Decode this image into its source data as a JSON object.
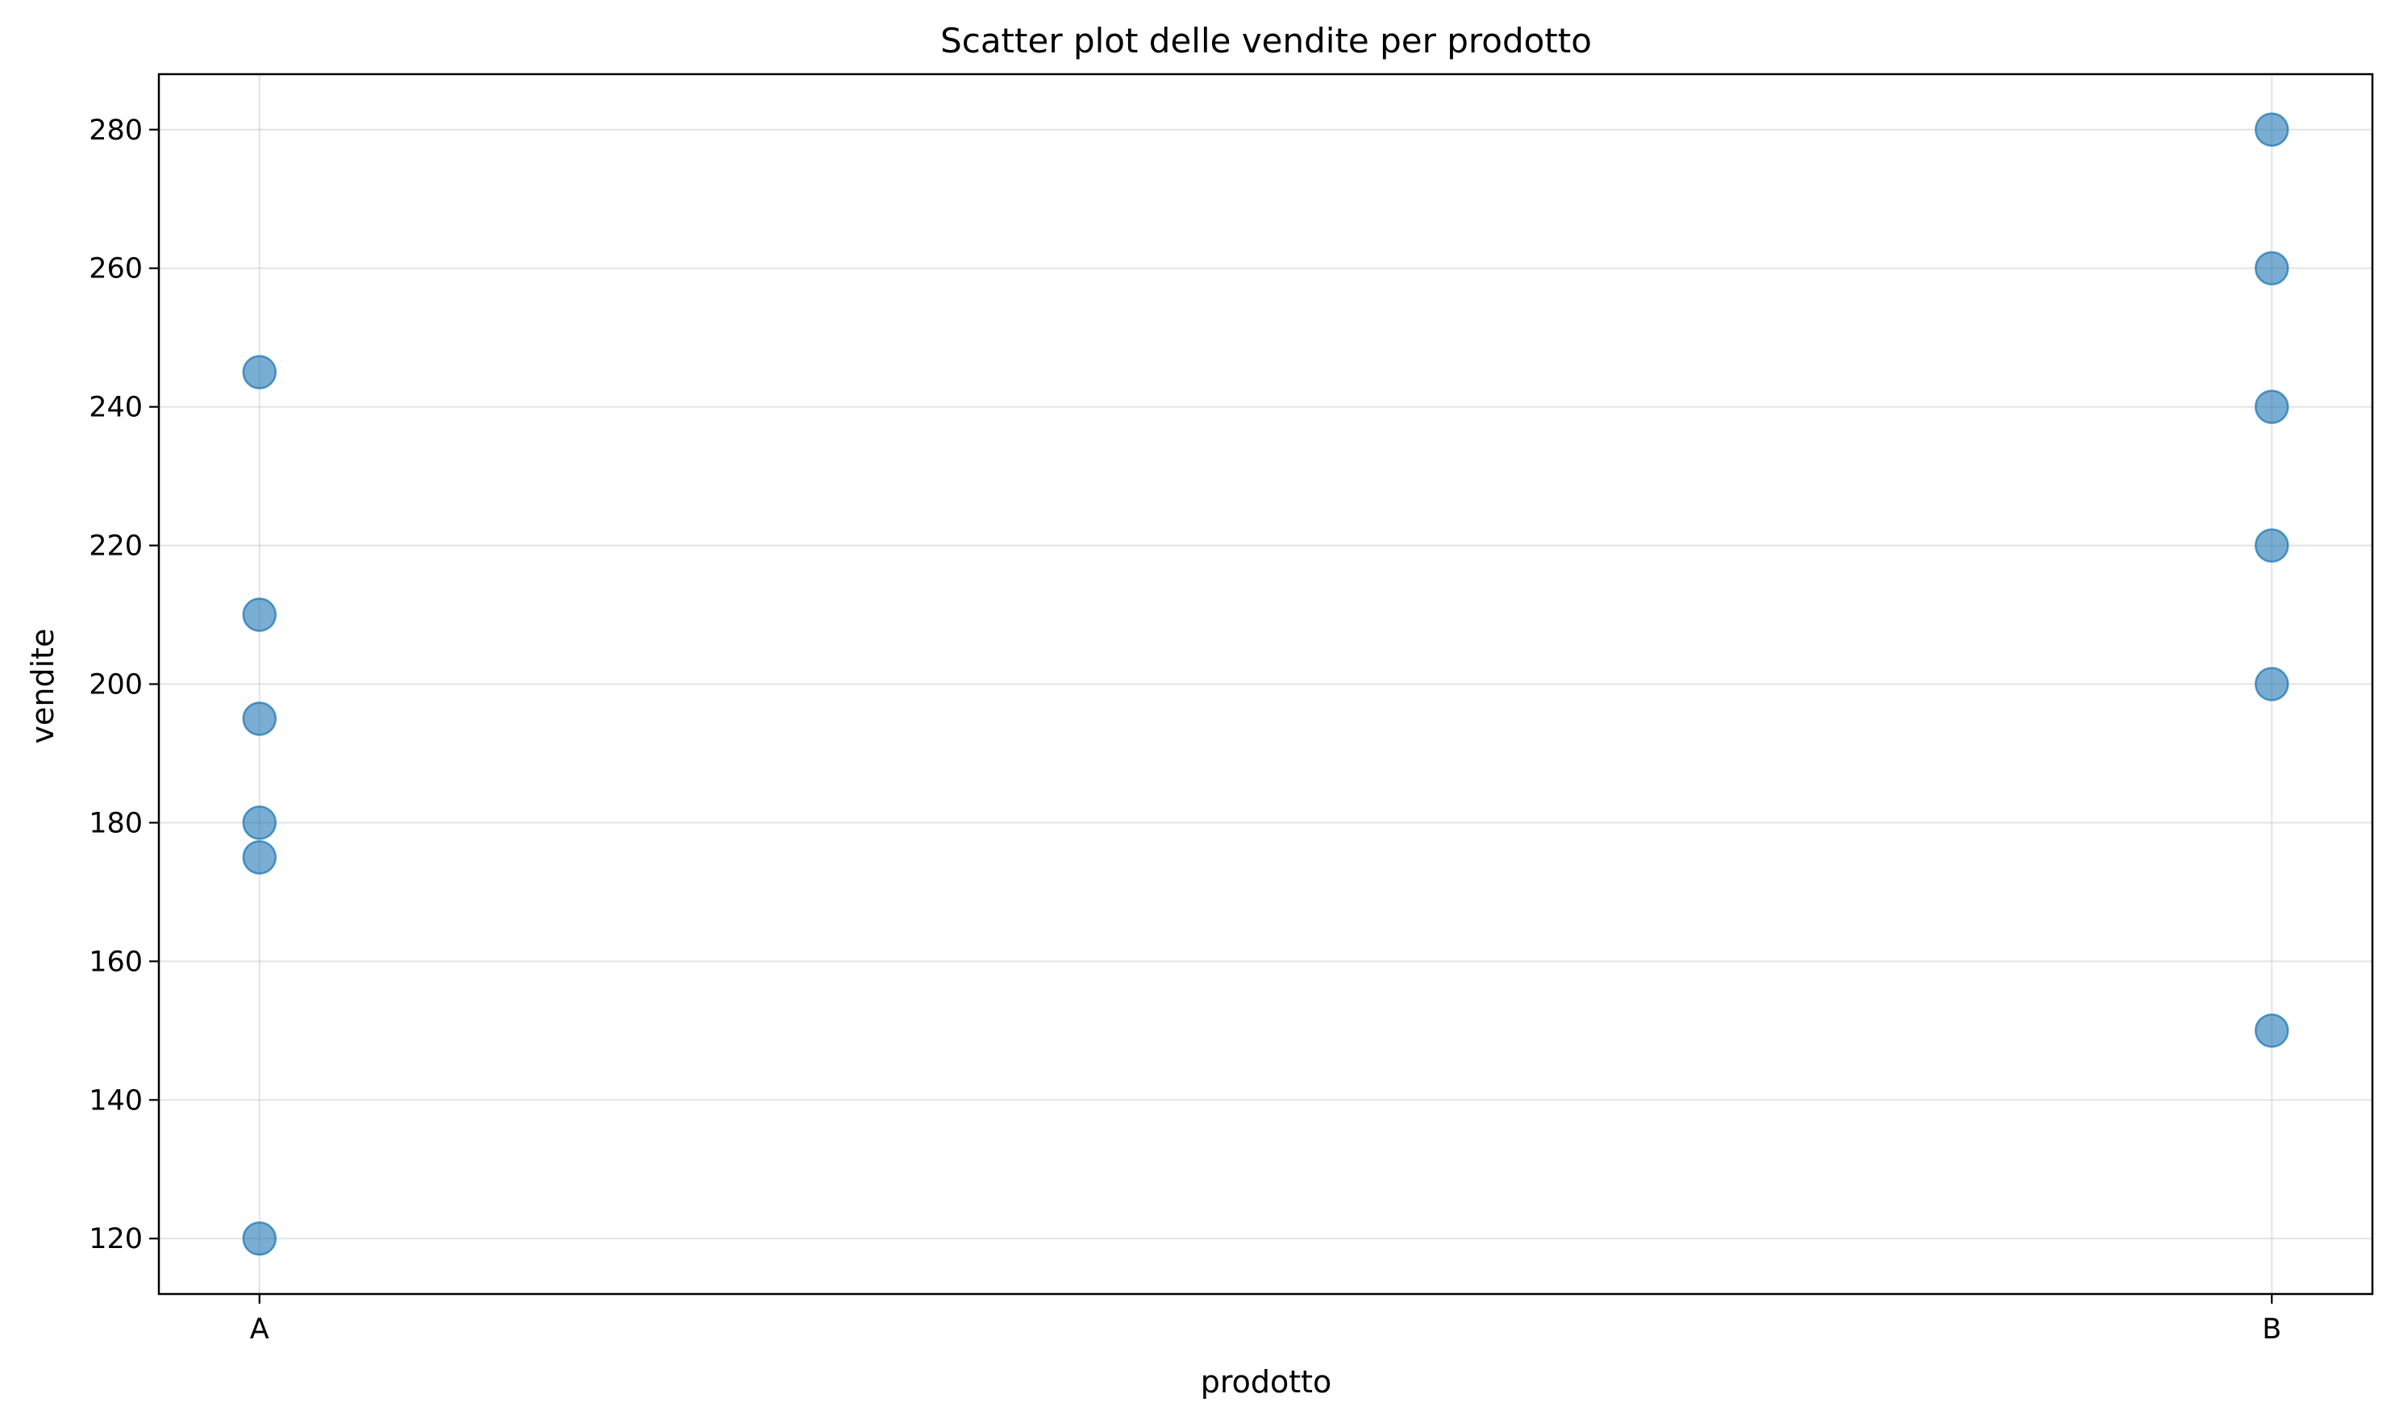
{
  "chart_data": {
    "type": "scatter",
    "title": "Scatter plot delle vendite per prodotto",
    "xlabel": "prodotto",
    "ylabel": "vendite",
    "categories": [
      "A",
      "B"
    ],
    "ylim": [
      112,
      288
    ],
    "yticks": [
      120,
      140,
      160,
      180,
      200,
      220,
      240,
      260,
      280
    ],
    "grid": true,
    "legend": "none",
    "marker_color": "#1f77b4",
    "marker_alpha": 0.6,
    "points": [
      {
        "x": "A",
        "y": 245
      },
      {
        "x": "A",
        "y": 210
      },
      {
        "x": "A",
        "y": 195
      },
      {
        "x": "A",
        "y": 180
      },
      {
        "x": "A",
        "y": 175
      },
      {
        "x": "A",
        "y": 120
      },
      {
        "x": "B",
        "y": 280
      },
      {
        "x": "B",
        "y": 260
      },
      {
        "x": "B",
        "y": 240
      },
      {
        "x": "B",
        "y": 220
      },
      {
        "x": "B",
        "y": 200
      },
      {
        "x": "B",
        "y": 150
      }
    ]
  }
}
